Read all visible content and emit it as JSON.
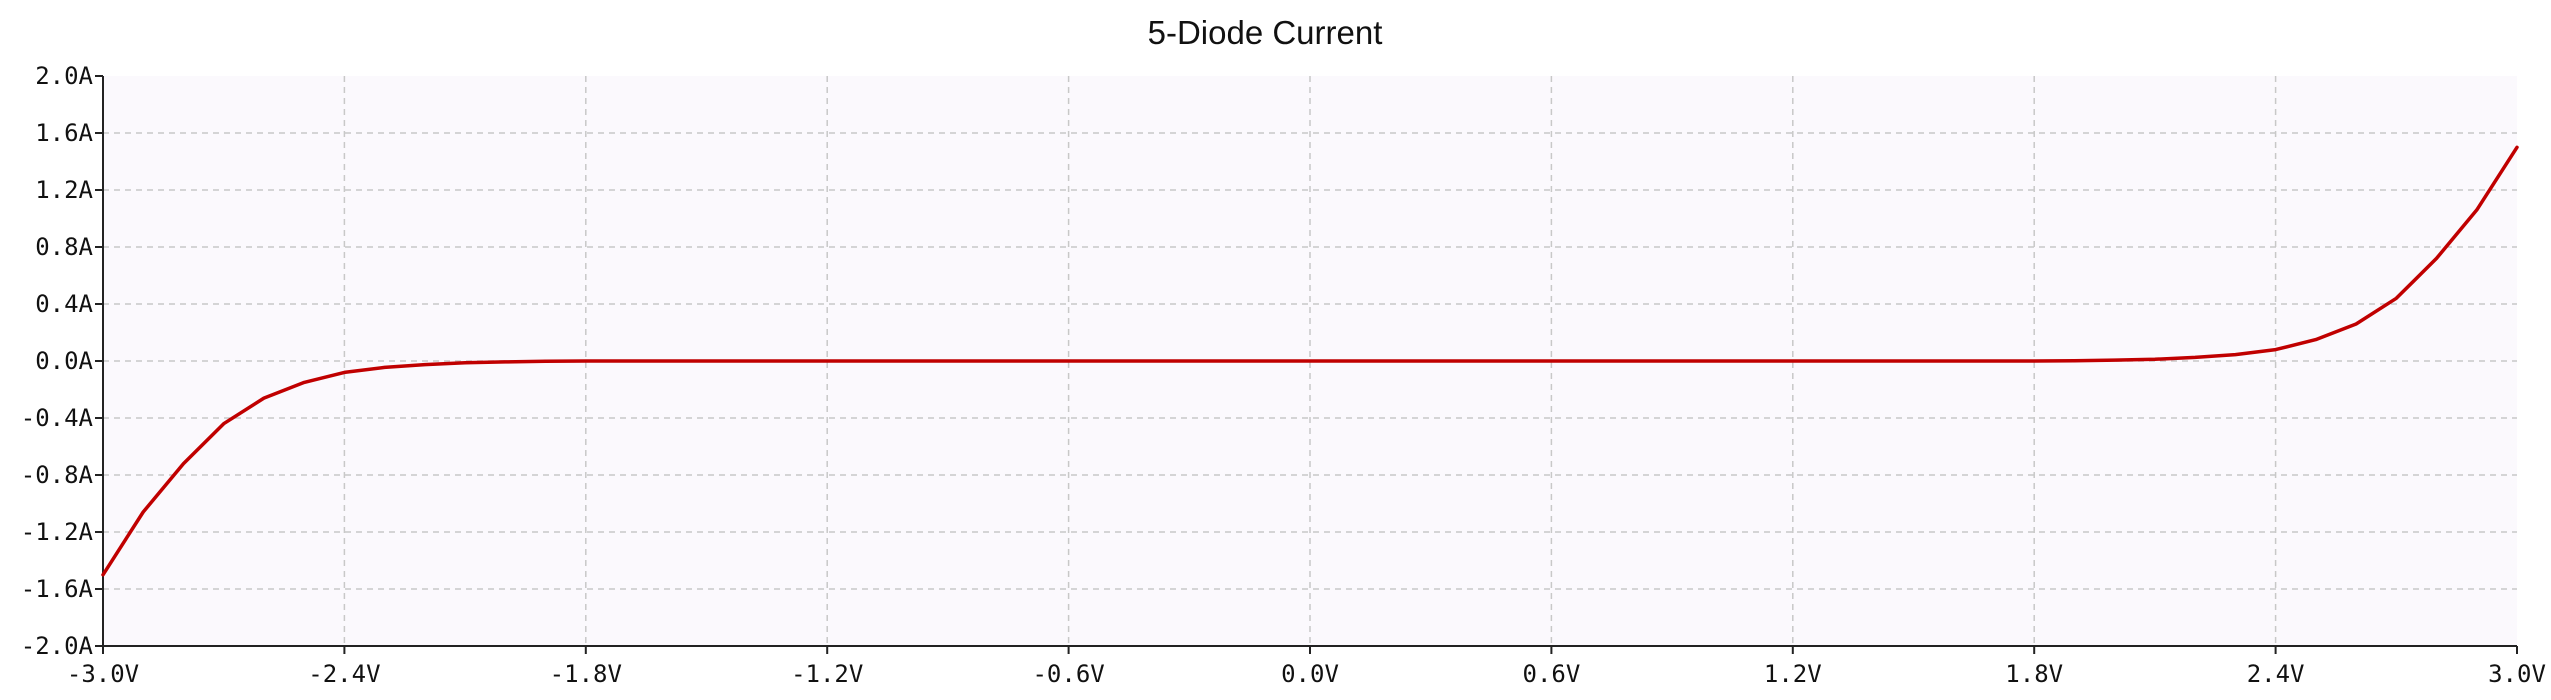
{
  "chart_data": {
    "type": "line",
    "title": "5-Diode Current",
    "xlabel": "",
    "ylabel": "",
    "xlim": [
      -3.0,
      3.0
    ],
    "ylim": [
      -2.0,
      2.0
    ],
    "grid": true,
    "x_ticks": [
      "-3.0V",
      "-2.4V",
      "-1.8V",
      "-1.2V",
      "-0.6V",
      "0.0V",
      "0.6V",
      "1.2V",
      "1.8V",
      "2.4V",
      "3.0V"
    ],
    "y_ticks": [
      "2.0A",
      "1.6A",
      "1.2A",
      "0.8A",
      "0.4A",
      "0.0A",
      "-0.4A",
      "-0.8A",
      "-1.2A",
      "-1.6A",
      "-2.0A"
    ],
    "series": [
      {
        "color": "#c00000",
        "x": [
          -3.0,
          -2.9,
          -2.8,
          -2.7,
          -2.6,
          -2.5,
          -2.4,
          -2.3,
          -2.2,
          -2.1,
          -2.0,
          -1.9,
          -1.8,
          1.8,
          1.9,
          2.0,
          2.1,
          2.2,
          2.3,
          2.4,
          2.5,
          2.6,
          2.7,
          2.8,
          2.9,
          3.0
        ],
        "y": [
          -1.5,
          -1.06,
          -0.72,
          -0.44,
          -0.26,
          -0.15,
          -0.08,
          -0.045,
          -0.025,
          -0.012,
          -0.006,
          -0.002,
          0.0,
          0.0,
          0.002,
          0.006,
          0.012,
          0.025,
          0.045,
          0.08,
          0.15,
          0.26,
          0.44,
          0.72,
          1.06,
          1.5
        ]
      }
    ]
  },
  "colors": {
    "plot_background": "#fbf9fd",
    "grid": "#c8c8c8",
    "axis": "#222222",
    "series": "#c00000"
  }
}
